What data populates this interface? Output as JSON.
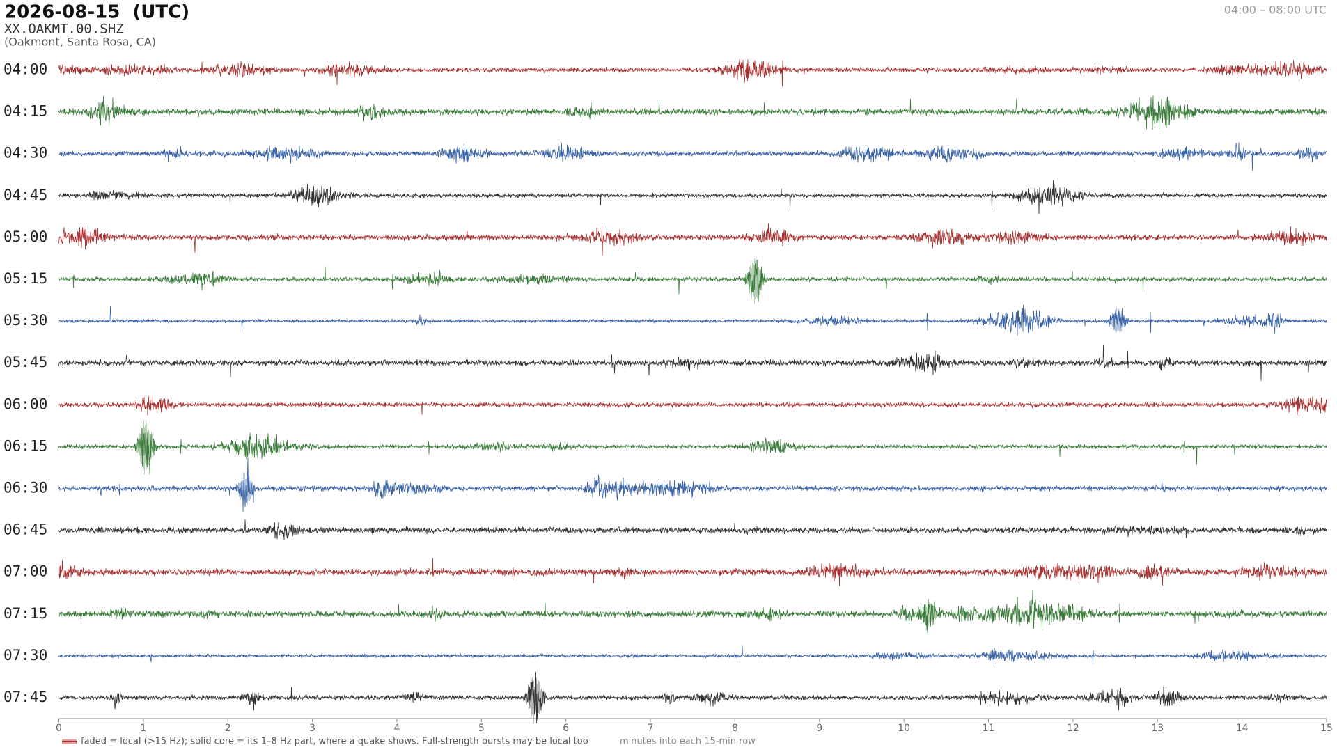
{
  "chart_data": {
    "type": "helicorder",
    "title": "2026-08-15  (UTC)",
    "station": "XX.OAKMT.00.SHZ",
    "location": "(Oakmont, Santa Rosa, CA)",
    "time_range": "04:00 – 08:00 UTC",
    "rows": [
      "04:00",
      "04:15",
      "04:30",
      "04:45",
      "05:00",
      "05:15",
      "05:30",
      "05:45",
      "06:00",
      "06:15",
      "06:30",
      "06:45",
      "07:00",
      "07:15",
      "07:30",
      "07:45"
    ],
    "colors": [
      "#a83232",
      "#3a7d3a",
      "#3a64a8",
      "#333333"
    ],
    "xlabel": "minutes into each 15-min row",
    "xlim": [
      0,
      15
    ],
    "xticks": [
      0,
      1,
      2,
      3,
      4,
      5,
      6,
      7,
      8,
      9,
      10,
      11,
      12,
      13,
      14,
      15
    ],
    "legend": "faded = local (>15 Hz); solid core = its 1–8 Hz part, where a quake shows. Full-strength bursts may be local too"
  }
}
